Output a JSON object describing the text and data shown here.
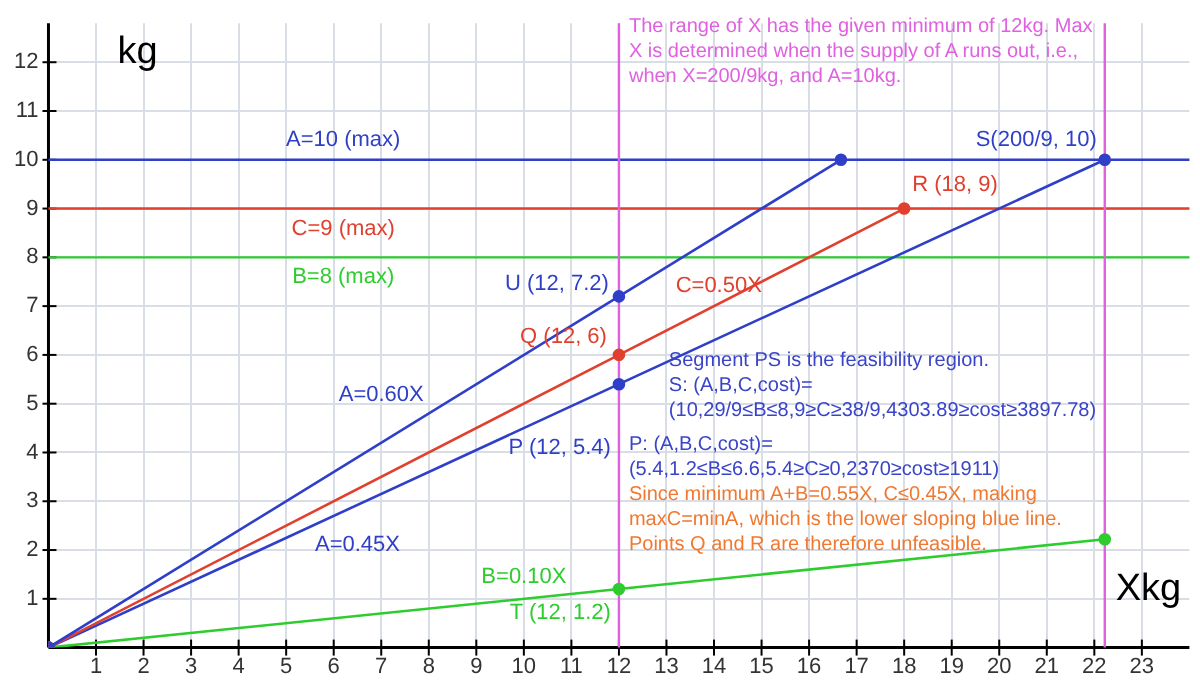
{
  "chart_data": {
    "type": "line",
    "xlabel": "Xkg",
    "ylabel": "kg",
    "xlim": [
      0,
      24
    ],
    "ylim": [
      0,
      12.8
    ],
    "xticks": [
      1,
      2,
      3,
      4,
      5,
      6,
      7,
      8,
      9,
      10,
      11,
      12,
      13,
      14,
      15,
      16,
      17,
      18,
      19,
      20,
      21,
      22,
      23
    ],
    "yticks": [
      1,
      2,
      3,
      4,
      5,
      6,
      7,
      8,
      9,
      10,
      11,
      12
    ],
    "grid": true,
    "legend": false,
    "marker": "circle",
    "line_style": "solid",
    "series": [
      {
        "name": "A=0.60X",
        "color": "#2f3fc8",
        "x": [
          0,
          12,
          16.67
        ],
        "values": [
          0,
          7.2,
          10
        ]
      },
      {
        "name": "C=0.50X",
        "color": "#e0402e",
        "x": [
          0,
          12,
          18
        ],
        "values": [
          0,
          6,
          9
        ]
      },
      {
        "name": "A=0.45X",
        "color": "#2f3fc8",
        "x": [
          0,
          12,
          22.22
        ],
        "values": [
          0,
          5.4,
          10
        ]
      },
      {
        "name": "B=0.10X",
        "color": "#2ecc2e",
        "x": [
          0,
          12,
          22.22
        ],
        "values": [
          0,
          1.2,
          2.22
        ]
      }
    ],
    "ref_lines": [
      {
        "axis": "y",
        "value": 10,
        "label": "A=10 (max)",
        "color": "#2f3fc8"
      },
      {
        "axis": "y",
        "value": 9,
        "label": "C=9 (max)",
        "color": "#e0402e"
      },
      {
        "axis": "y",
        "value": 8,
        "label": "B=8 (max)",
        "color": "#2ecc2e"
      },
      {
        "axis": "x",
        "value": 12,
        "label": null,
        "color": "#e060e0"
      },
      {
        "axis": "x",
        "value": 22.22,
        "label": null,
        "color": "#e060e0"
      }
    ],
    "annotations": [
      {
        "text": "U (12, 7.2)",
        "x": 12,
        "y": 7.2
      },
      {
        "text": "Q (12, 6)",
        "x": 12,
        "y": 6
      },
      {
        "text": "P (12, 5.4)",
        "x": 12,
        "y": 5.4
      },
      {
        "text": "T (12, 1.2)",
        "x": 12,
        "y": 1.2
      },
      {
        "text": "R (18, 9)",
        "x": 18,
        "y": 9
      },
      {
        "text": "S(200/9, 10)",
        "x": 22.22,
        "y": 10
      },
      "The range of X has the given minimum of 12kg. Max\nX is determined when the supply of A runs out, i.e.,\nwhen X=200/9kg, and A=10kg.",
      "Segment PS is the feasibility region.\nS: (A,B,C,cost)=\n(10,29/9≤B≤8,9≥C≥38/9,4303.89≥cost≥3897.78)",
      "P: (A,B,C,cost)=\n(5.4,1.2≤B≤6.6,5.4≥C≥0,2370≥cost≥1911)",
      "Since minimum A+B=0.55X, C≤0.45X, making\nmaxC=minA, which is the lower sloping blue line.\nPoints Q and R are therefore unfeasible."
    ]
  }
}
